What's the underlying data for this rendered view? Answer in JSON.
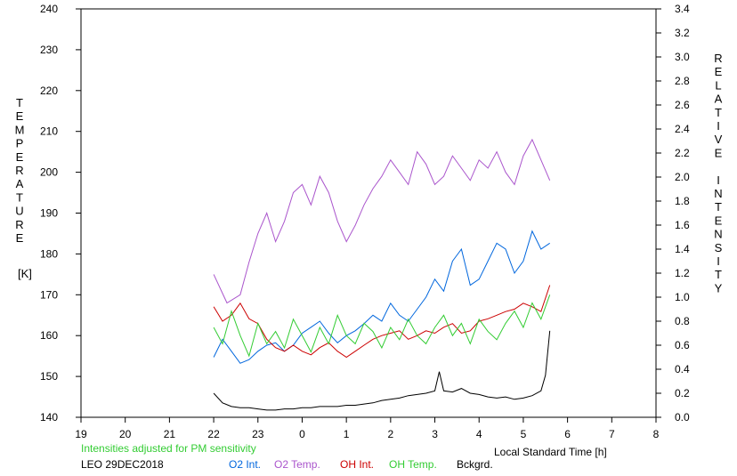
{
  "chart_data": {
    "type": "line",
    "left_axis_label": "TEMPERATURE",
    "left_axis_unit": "[K]",
    "right_axis_label": "RELATIVE INTENSITY",
    "xlabel": "Local Standard Time [h]",
    "note": "Intensities adjusted for PM sensitivity",
    "station_date": "LEO 29DEC2018",
    "x_ticks": [
      "19",
      "20",
      "21",
      "22",
      "23",
      "0",
      "1",
      "2",
      "3",
      "4",
      "5",
      "6",
      "7",
      "8"
    ],
    "x_range_hours": [
      19,
      32
    ],
    "y_left_ticks": [
      "140",
      "150",
      "160",
      "170",
      "180",
      "190",
      "200",
      "210",
      "220",
      "230",
      "240"
    ],
    "y_left_range": [
      140,
      240
    ],
    "y_right_ticks": [
      "0.0",
      "0.2",
      "0.4",
      "0.6",
      "0.8",
      "1.0",
      "1.2",
      "1.4",
      "1.6",
      "1.8",
      "2.0",
      "2.2",
      "2.4",
      "2.6",
      "2.8",
      "3.0",
      "3.2",
      "3.4"
    ],
    "y_right_range": [
      0,
      3.4
    ],
    "series": [
      {
        "name": "O2 Int.",
        "axis": "right",
        "color": "#0066dd",
        "x": [
          22.0,
          22.2,
          22.4,
          22.6,
          22.8,
          23.0,
          23.2,
          23.4,
          23.6,
          23.8,
          24.0,
          24.2,
          24.4,
          24.6,
          24.8,
          25.0,
          25.2,
          25.4,
          25.6,
          25.8,
          26.0,
          26.2,
          26.4,
          26.6,
          26.8,
          27.0,
          27.2,
          27.4,
          27.6,
          27.8,
          28.0,
          28.2,
          28.4,
          28.6,
          28.8,
          29.0,
          29.2,
          29.4,
          29.6
        ],
        "values": [
          0.5,
          0.65,
          0.55,
          0.45,
          0.48,
          0.55,
          0.6,
          0.62,
          0.55,
          0.6,
          0.7,
          0.75,
          0.8,
          0.7,
          0.62,
          0.68,
          0.72,
          0.78,
          0.85,
          0.8,
          0.95,
          0.85,
          0.8,
          0.9,
          1.0,
          1.15,
          1.05,
          1.3,
          1.4,
          1.1,
          1.15,
          1.3,
          1.45,
          1.4,
          1.2,
          1.3,
          1.55,
          1.4,
          1.45
        ]
      },
      {
        "name": "O2 Temp.",
        "axis": "left",
        "color": "#aa55cc",
        "x": [
          22.0,
          22.3,
          22.6,
          22.8,
          23.0,
          23.2,
          23.4,
          23.6,
          23.8,
          24.0,
          24.2,
          24.4,
          24.6,
          24.8,
          25.0,
          25.2,
          25.4,
          25.6,
          25.8,
          26.0,
          26.2,
          26.4,
          26.6,
          26.8,
          27.0,
          27.2,
          27.4,
          27.6,
          27.8,
          28.0,
          28.2,
          28.4,
          28.6,
          28.8,
          29.0,
          29.2,
          29.4,
          29.6
        ],
        "values": [
          175,
          168,
          170,
          178,
          185,
          190,
          183,
          188,
          195,
          197,
          192,
          199,
          195,
          188,
          183,
          187,
          192,
          196,
          199,
          203,
          200,
          197,
          205,
          202,
          197,
          199,
          204,
          201,
          198,
          203,
          201,
          205,
          200,
          197,
          204,
          208,
          203,
          198
        ]
      },
      {
        "name": "OH Int.",
        "axis": "right",
        "color": "#cc0000",
        "x": [
          22.0,
          22.2,
          22.4,
          22.6,
          22.8,
          23.0,
          23.2,
          23.4,
          23.6,
          23.8,
          24.0,
          24.2,
          24.4,
          24.6,
          24.8,
          25.0,
          25.2,
          25.4,
          25.6,
          25.8,
          26.0,
          26.2,
          26.4,
          26.6,
          26.8,
          27.0,
          27.2,
          27.4,
          27.6,
          27.8,
          28.0,
          28.2,
          28.4,
          28.6,
          28.8,
          29.0,
          29.2,
          29.4,
          29.6
        ],
        "values": [
          0.92,
          0.8,
          0.85,
          0.95,
          0.82,
          0.78,
          0.65,
          0.58,
          0.55,
          0.6,
          0.55,
          0.52,
          0.58,
          0.62,
          0.55,
          0.5,
          0.55,
          0.6,
          0.65,
          0.68,
          0.7,
          0.72,
          0.65,
          0.68,
          0.72,
          0.7,
          0.75,
          0.78,
          0.7,
          0.72,
          0.8,
          0.82,
          0.85,
          0.88,
          0.9,
          0.95,
          0.92,
          0.88,
          1.1
        ]
      },
      {
        "name": "OH Temp.",
        "axis": "left",
        "color": "#33cc33",
        "x": [
          22.0,
          22.2,
          22.4,
          22.6,
          22.8,
          23.0,
          23.2,
          23.4,
          23.6,
          23.8,
          24.0,
          24.2,
          24.4,
          24.6,
          24.8,
          25.0,
          25.2,
          25.4,
          25.6,
          25.8,
          26.0,
          26.2,
          26.4,
          26.6,
          26.8,
          27.0,
          27.2,
          27.4,
          27.6,
          27.8,
          28.0,
          28.2,
          28.4,
          28.6,
          28.8,
          29.0,
          29.2,
          29.4,
          29.6
        ],
        "values": [
          162,
          158,
          166,
          160,
          155,
          163,
          158,
          161,
          157,
          164,
          160,
          156,
          162,
          158,
          165,
          160,
          158,
          163,
          161,
          157,
          162,
          159,
          164,
          160,
          158,
          162,
          165,
          160,
          163,
          158,
          164,
          161,
          159,
          163,
          166,
          162,
          168,
          164,
          170
        ]
      },
      {
        "name": "Bckgrd.",
        "axis": "right",
        "color": "#000000",
        "x": [
          22.0,
          22.2,
          22.4,
          22.6,
          22.8,
          23.0,
          23.2,
          23.4,
          23.6,
          23.8,
          24.0,
          24.2,
          24.4,
          24.6,
          24.8,
          25.0,
          25.2,
          25.4,
          25.6,
          25.8,
          26.0,
          26.2,
          26.4,
          26.6,
          26.8,
          27.0,
          27.1,
          27.2,
          27.4,
          27.6,
          27.8,
          28.0,
          28.2,
          28.4,
          28.6,
          28.8,
          29.0,
          29.2,
          29.4,
          29.5,
          29.6
        ],
        "values": [
          0.2,
          0.12,
          0.09,
          0.08,
          0.08,
          0.07,
          0.06,
          0.06,
          0.07,
          0.07,
          0.08,
          0.08,
          0.09,
          0.09,
          0.09,
          0.1,
          0.1,
          0.11,
          0.12,
          0.14,
          0.15,
          0.16,
          0.18,
          0.19,
          0.2,
          0.22,
          0.38,
          0.22,
          0.21,
          0.24,
          0.2,
          0.19,
          0.17,
          0.16,
          0.17,
          0.15,
          0.16,
          0.18,
          0.22,
          0.35,
          0.72
        ]
      }
    ]
  }
}
